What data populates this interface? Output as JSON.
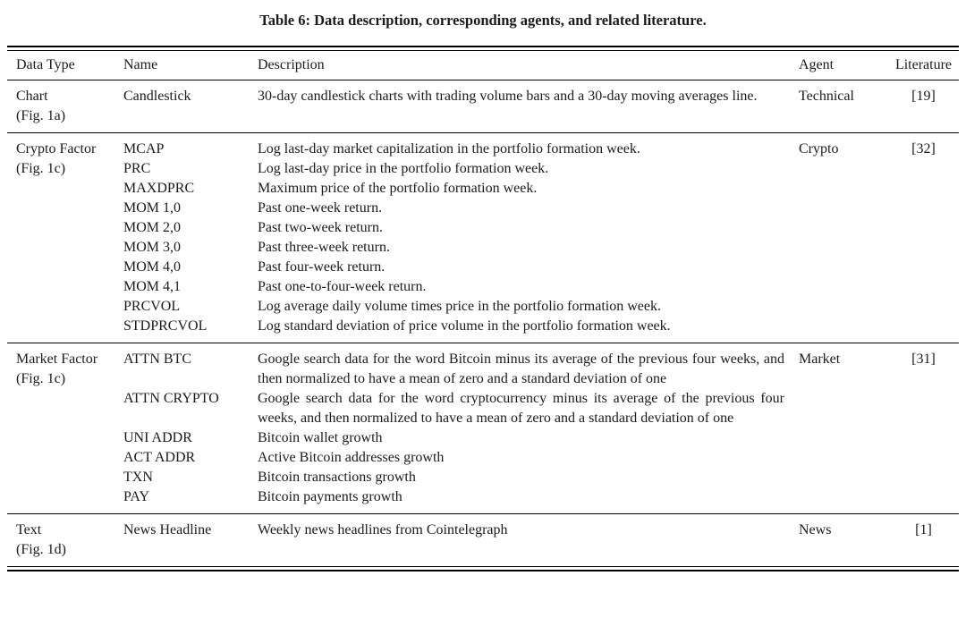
{
  "title": "Table 6: Data description, corresponding agents, and related literature.",
  "colors": {
    "text": "#1b1b1b",
    "rule": "#000000",
    "background": "#ffffff"
  },
  "table": {
    "headers": {
      "data_type": "Data Type",
      "name": "Name",
      "description": "Description",
      "agent": "Agent",
      "literature": "Literature"
    },
    "sections": [
      {
        "data_type": "Chart",
        "fig": "(Fig. 1a)",
        "agent": "Technical",
        "literature": "[19]",
        "entries": [
          {
            "name": "Candlestick",
            "description": "30-day candlestick charts with trading volume bars and a 30-day moving averages line."
          }
        ]
      },
      {
        "data_type": "Crypto Factor",
        "fig": "(Fig. 1c)",
        "agent": "Crypto",
        "literature": "[32]",
        "entries": [
          {
            "name": "MCAP",
            "description": "Log last-day market capitalization in the portfolio formation week."
          },
          {
            "name": "PRC",
            "description": "Log last-day price in the portfolio formation week."
          },
          {
            "name": "MAXDPRC",
            "description": "Maximum price of the portfolio formation week."
          },
          {
            "name": "MOM 1,0",
            "description": "Past one-week return."
          },
          {
            "name": "MOM 2,0",
            "description": "Past two-week return."
          },
          {
            "name": "MOM 3,0",
            "description": "Past three-week return."
          },
          {
            "name": "MOM 4,0",
            "description": "Past four-week return."
          },
          {
            "name": "MOM 4,1",
            "description": "Past one-to-four-week return."
          },
          {
            "name": "PRCVOL",
            "description": "Log average daily volume times price in the portfolio formation week."
          },
          {
            "name": "STDPRCVOL",
            "description": "Log standard deviation of price volume in the portfolio formation week."
          }
        ]
      },
      {
        "data_type": "Market Factor",
        "fig": "(Fig. 1c)",
        "agent": "Market",
        "literature": "[31]",
        "entries": [
          {
            "name": "ATTN BTC",
            "description": "Google search data for the word Bitcoin minus its average of the previous four weeks, and then normalized to have a mean of zero and a standard deviation of one"
          },
          {
            "name": "ATTN CRYPTO",
            "description": "Google search data for the word cryptocurrency minus its average of the previous four weeks, and then normalized to have a mean of zero and a standard deviation of one"
          },
          {
            "name": "UNI ADDR",
            "description": "Bitcoin wallet growth"
          },
          {
            "name": "ACT ADDR",
            "description": "Active Bitcoin addresses growth"
          },
          {
            "name": "TXN",
            "description": "Bitcoin transactions growth"
          },
          {
            "name": "PAY",
            "description": "Bitcoin payments growth"
          }
        ]
      },
      {
        "data_type": "Text",
        "fig": "(Fig. 1d)",
        "agent": "News",
        "literature": "[1]",
        "entries": [
          {
            "name": "News Headline",
            "description": "Weekly news headlines from Cointelegraph"
          }
        ]
      }
    ]
  }
}
